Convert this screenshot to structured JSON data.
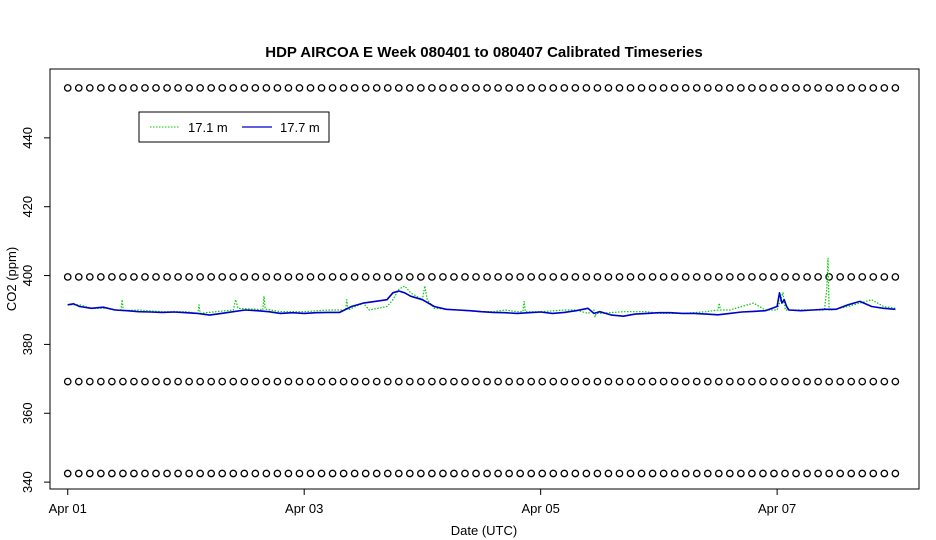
{
  "chart_data": {
    "type": "line",
    "title": "HDP AIRCOA E  Week 080401 to 080407  Calibrated Timeseries",
    "xlabel": "Date (UTC)",
    "ylabel": "CO2 (ppm)",
    "xlim_days": [
      -0.15,
      7.2
    ],
    "ylim": [
      338,
      460
    ],
    "x_ticks": [
      {
        "day": 0,
        "label": "Apr 01"
      },
      {
        "day": 2,
        "label": "Apr 03"
      },
      {
        "day": 4,
        "label": "Apr 05"
      },
      {
        "day": 6,
        "label": "Apr 07"
      }
    ],
    "y_ticks": [
      340,
      360,
      380,
      400,
      420,
      440
    ],
    "grid": false,
    "legend_position": "top-left",
    "series": [
      {
        "name": "17.1 m",
        "color": "#00cc00",
        "style": "dotted",
        "x": [
          0,
          0.1,
          0.2,
          0.35,
          0.45,
          0.46,
          0.47,
          0.6,
          0.8,
          1,
          1.1,
          1.11,
          1.12,
          1.25,
          1.4,
          1.42,
          1.44,
          1.6,
          1.65,
          1.66,
          1.67,
          1.8,
          2,
          2.2,
          2.3,
          2.35,
          2.36,
          2.37,
          2.5,
          2.55,
          2.7,
          2.75,
          2.8,
          2.85,
          2.9,
          3,
          3.02,
          3.04,
          3.1,
          3.3,
          3.5,
          3.6,
          3.7,
          3.8,
          3.85,
          3.86,
          3.87,
          4,
          4.2,
          4.3,
          4.4,
          4.45,
          4.46,
          4.47,
          4.5,
          4.7,
          4.9,
          5,
          5.2,
          5.4,
          5.5,
          5.51,
          5.52,
          5.6,
          5.8,
          5.9,
          6,
          6.05,
          6.06,
          6.07,
          6.2,
          6.4,
          6.42,
          6.43,
          6.44,
          6.46,
          6.6,
          6.8,
          6.9,
          7
        ],
        "y": [
          391.5,
          391.5,
          390.5,
          390.5,
          389.8,
          393,
          389.8,
          390,
          389.5,
          389.5,
          389,
          391.5,
          389,
          389.5,
          390,
          393,
          390.5,
          390.2,
          390,
          394,
          390.3,
          389.5,
          389.5,
          390,
          390,
          390,
          393,
          390,
          392,
          390,
          391,
          393,
          396,
          397,
          395,
          393,
          397,
          393,
          390.5,
          390,
          389.5,
          389.5,
          390,
          389.5,
          389.5,
          392.5,
          389.5,
          389.5,
          390,
          390,
          389,
          390,
          388,
          389,
          389,
          389.5,
          389.5,
          389,
          389,
          389.5,
          390,
          392,
          390,
          390,
          392,
          390,
          390,
          395,
          392,
          390,
          390,
          390,
          396,
          405,
          390,
          390,
          391,
          393,
          391,
          390.5
        ]
      },
      {
        "name": "17.7 m",
        "color": "#0000cc",
        "style": "solid",
        "x": [
          0,
          0.05,
          0.1,
          0.2,
          0.3,
          0.4,
          0.5,
          0.6,
          0.7,
          0.8,
          0.9,
          1,
          1.1,
          1.2,
          1.3,
          1.4,
          1.5,
          1.6,
          1.7,
          1.8,
          1.9,
          2,
          2.1,
          2.2,
          2.3,
          2.4,
          2.5,
          2.6,
          2.7,
          2.75,
          2.8,
          2.85,
          2.9,
          3,
          3.1,
          3.2,
          3.3,
          3.4,
          3.5,
          3.6,
          3.7,
          3.8,
          3.9,
          4,
          4.1,
          4.2,
          4.3,
          4.4,
          4.45,
          4.5,
          4.55,
          4.6,
          4.7,
          4.8,
          4.9,
          5,
          5.1,
          5.2,
          5.3,
          5.4,
          5.5,
          5.6,
          5.7,
          5.8,
          5.9,
          6,
          6.02,
          6.04,
          6.06,
          6.08,
          6.1,
          6.2,
          6.3,
          6.4,
          6.5,
          6.6,
          6.7,
          6.8,
          6.9,
          7
        ],
        "y": [
          391.5,
          391.8,
          391,
          390.5,
          390.8,
          390,
          389.8,
          389.5,
          389.4,
          389.3,
          389.4,
          389.2,
          389,
          388.5,
          389,
          389.5,
          390,
          389.8,
          389.5,
          389,
          389.2,
          389,
          389.2,
          389.3,
          389.3,
          391,
          392,
          392.5,
          393,
          395,
          395.5,
          395,
          394,
          393,
          391,
          390.2,
          390,
          389.8,
          389.5,
          389.3,
          389.2,
          389,
          389.2,
          389.4,
          389,
          389.3,
          389.8,
          390.5,
          389,
          389.5,
          389,
          388.5,
          388.2,
          388.8,
          389,
          389.2,
          389.2,
          389,
          389,
          388.8,
          388.6,
          389,
          389.4,
          389.6,
          389.8,
          391,
          395,
          392,
          393,
          391,
          390,
          389.8,
          390,
          390.2,
          390.2,
          391.5,
          392.5,
          391,
          390.5,
          390.2
        ]
      }
    ],
    "marker_series": {
      "name": "",
      "symbol": "circle",
      "rows_ppm": [
        342.5,
        369.2,
        399.6,
        454.5
      ],
      "x_start_day": 0,
      "x_end_day": 7,
      "count_per_row": 76
    }
  }
}
